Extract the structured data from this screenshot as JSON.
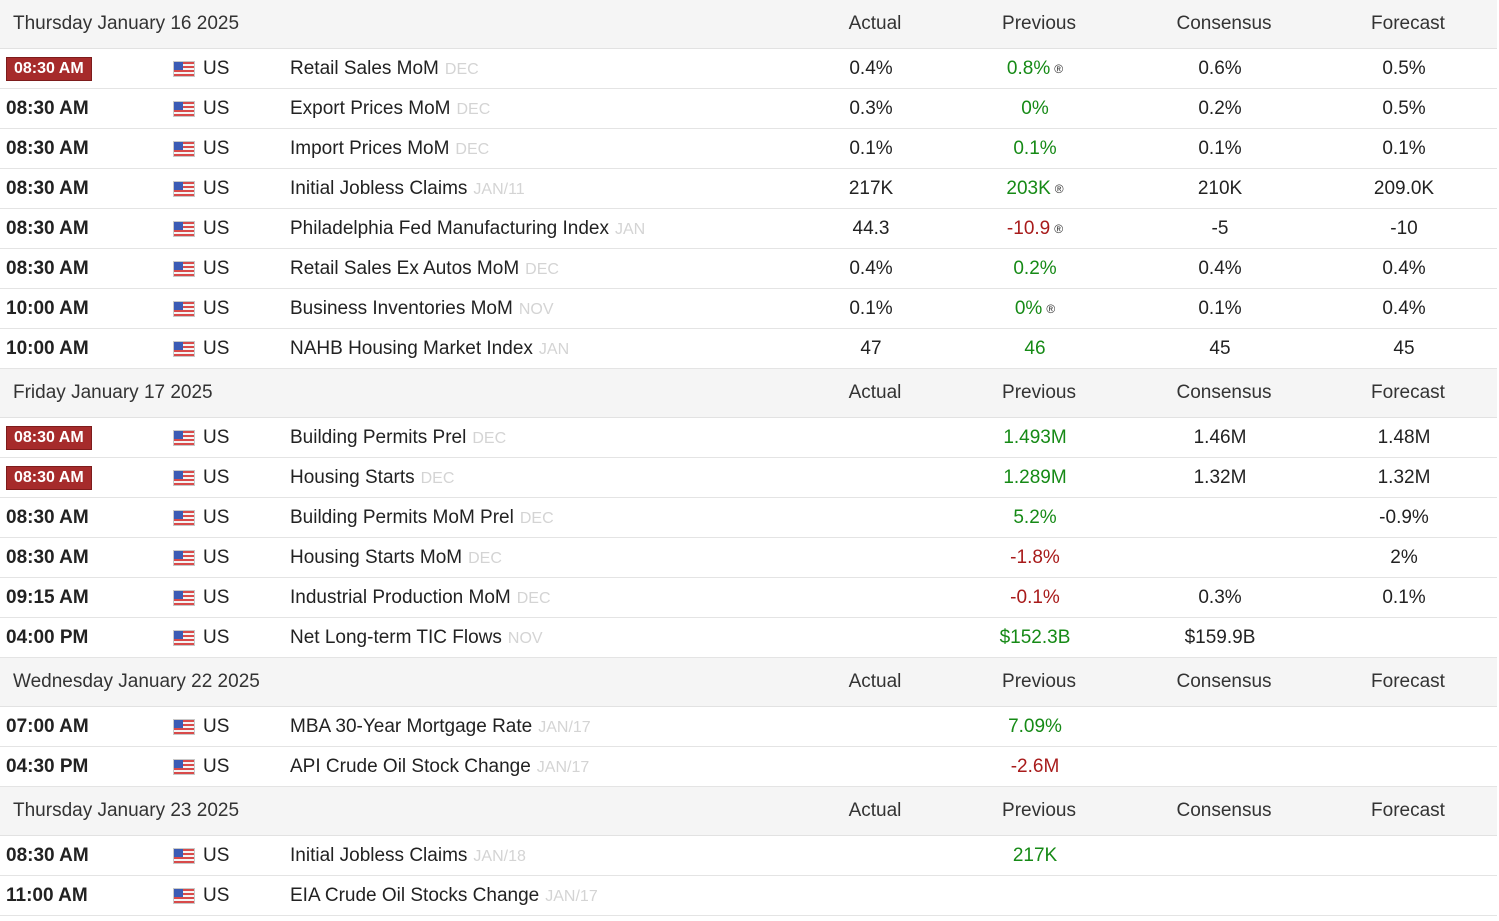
{
  "columns": {
    "actual": "Actual",
    "previous": "Previous",
    "consensus": "Consensus",
    "forecast": "Forecast"
  },
  "groups": [
    {
      "date": "Thursday January 16 2025",
      "rows": [
        {
          "time": "08:30 AM",
          "highlight": true,
          "country": "US",
          "event": "Retail Sales MoM",
          "period": "DEC",
          "actual": "0.4%",
          "previous": "0.8%",
          "prev_color": "green",
          "revised": "®",
          "consensus": "0.6%",
          "forecast": "0.5%"
        },
        {
          "time": "08:30 AM",
          "highlight": false,
          "country": "US",
          "event": "Export Prices MoM",
          "period": "DEC",
          "actual": "0.3%",
          "previous": "0%",
          "prev_color": "green",
          "revised": "",
          "consensus": "0.2%",
          "forecast": "0.5%"
        },
        {
          "time": "08:30 AM",
          "highlight": false,
          "country": "US",
          "event": "Import Prices MoM",
          "period": "DEC",
          "actual": "0.1%",
          "previous": "0.1%",
          "prev_color": "green",
          "revised": "",
          "consensus": "0.1%",
          "forecast": "0.1%"
        },
        {
          "time": "08:30 AM",
          "highlight": false,
          "country": "US",
          "event": "Initial Jobless Claims",
          "period": "JAN/11",
          "actual": "217K",
          "previous": "203K",
          "prev_color": "green",
          "revised": "®",
          "consensus": "210K",
          "forecast": "209.0K"
        },
        {
          "time": "08:30 AM",
          "highlight": false,
          "country": "US",
          "event": "Philadelphia Fed Manufacturing Index",
          "period": "JAN",
          "actual": "44.3",
          "previous": "-10.9",
          "prev_color": "red",
          "revised": "®",
          "consensus": "-5",
          "forecast": "-10"
        },
        {
          "time": "08:30 AM",
          "highlight": false,
          "country": "US",
          "event": "Retail Sales Ex Autos MoM",
          "period": "DEC",
          "actual": "0.4%",
          "previous": "0.2%",
          "prev_color": "green",
          "revised": "",
          "consensus": "0.4%",
          "forecast": "0.4%"
        },
        {
          "time": "10:00 AM",
          "highlight": false,
          "country": "US",
          "event": "Business Inventories MoM",
          "period": "NOV",
          "actual": "0.1%",
          "previous": "0%",
          "prev_color": "green",
          "revised": "®",
          "consensus": "0.1%",
          "forecast": "0.4%"
        },
        {
          "time": "10:00 AM",
          "highlight": false,
          "country": "US",
          "event": "NAHB Housing Market Index",
          "period": "JAN",
          "actual": "47",
          "previous": "46",
          "prev_color": "green",
          "revised": "",
          "consensus": "45",
          "forecast": "45"
        }
      ]
    },
    {
      "date": "Friday January 17 2025",
      "rows": [
        {
          "time": "08:30 AM",
          "highlight": true,
          "country": "US",
          "event": "Building Permits Prel",
          "period": "DEC",
          "actual": "",
          "previous": "1.493M",
          "prev_color": "green",
          "revised": "",
          "consensus": "1.46M",
          "forecast": "1.48M"
        },
        {
          "time": "08:30 AM",
          "highlight": true,
          "country": "US",
          "event": "Housing Starts",
          "period": "DEC",
          "actual": "",
          "previous": "1.289M",
          "prev_color": "green",
          "revised": "",
          "consensus": "1.32M",
          "forecast": "1.32M"
        },
        {
          "time": "08:30 AM",
          "highlight": false,
          "country": "US",
          "event": "Building Permits MoM Prel",
          "period": "DEC",
          "actual": "",
          "previous": "5.2%",
          "prev_color": "green",
          "revised": "",
          "consensus": "",
          "forecast": "-0.9%"
        },
        {
          "time": "08:30 AM",
          "highlight": false,
          "country": "US",
          "event": "Housing Starts MoM",
          "period": "DEC",
          "actual": "",
          "previous": "-1.8%",
          "prev_color": "red",
          "revised": "",
          "consensus": "",
          "forecast": "2%"
        },
        {
          "time": "09:15 AM",
          "highlight": false,
          "country": "US",
          "event": "Industrial Production MoM",
          "period": "DEC",
          "actual": "",
          "previous": "-0.1%",
          "prev_color": "red",
          "revised": "",
          "consensus": "0.3%",
          "forecast": "0.1%"
        },
        {
          "time": "04:00 PM",
          "highlight": false,
          "country": "US",
          "event": "Net Long-term TIC Flows",
          "period": "NOV",
          "actual": "",
          "previous": "$152.3B",
          "prev_color": "green",
          "revised": "",
          "consensus": "$159.9B",
          "forecast": ""
        }
      ]
    },
    {
      "date": "Wednesday January 22 2025",
      "rows": [
        {
          "time": "07:00 AM",
          "highlight": false,
          "country": "US",
          "event": "MBA 30-Year Mortgage Rate",
          "period": "JAN/17",
          "actual": "",
          "previous": "7.09%",
          "prev_color": "green",
          "revised": "",
          "consensus": "",
          "forecast": ""
        },
        {
          "time": "04:30 PM",
          "highlight": false,
          "country": "US",
          "event": "API Crude Oil Stock Change",
          "period": "JAN/17",
          "actual": "",
          "previous": "-2.6M",
          "prev_color": "red",
          "revised": "",
          "consensus": "",
          "forecast": ""
        }
      ]
    },
    {
      "date": "Thursday January 23 2025",
      "rows": [
        {
          "time": "08:30 AM",
          "highlight": false,
          "country": "US",
          "event": "Initial Jobless Claims",
          "period": "JAN/18",
          "actual": "",
          "previous": "217K",
          "prev_color": "green",
          "revised": "",
          "consensus": "",
          "forecast": ""
        },
        {
          "time": "11:00 AM",
          "highlight": false,
          "country": "US",
          "event": "EIA Crude Oil Stocks Change",
          "period": "JAN/17",
          "actual": "",
          "previous": "",
          "prev_color": "green",
          "revised": "",
          "consensus": "",
          "forecast": ""
        }
      ]
    }
  ]
}
